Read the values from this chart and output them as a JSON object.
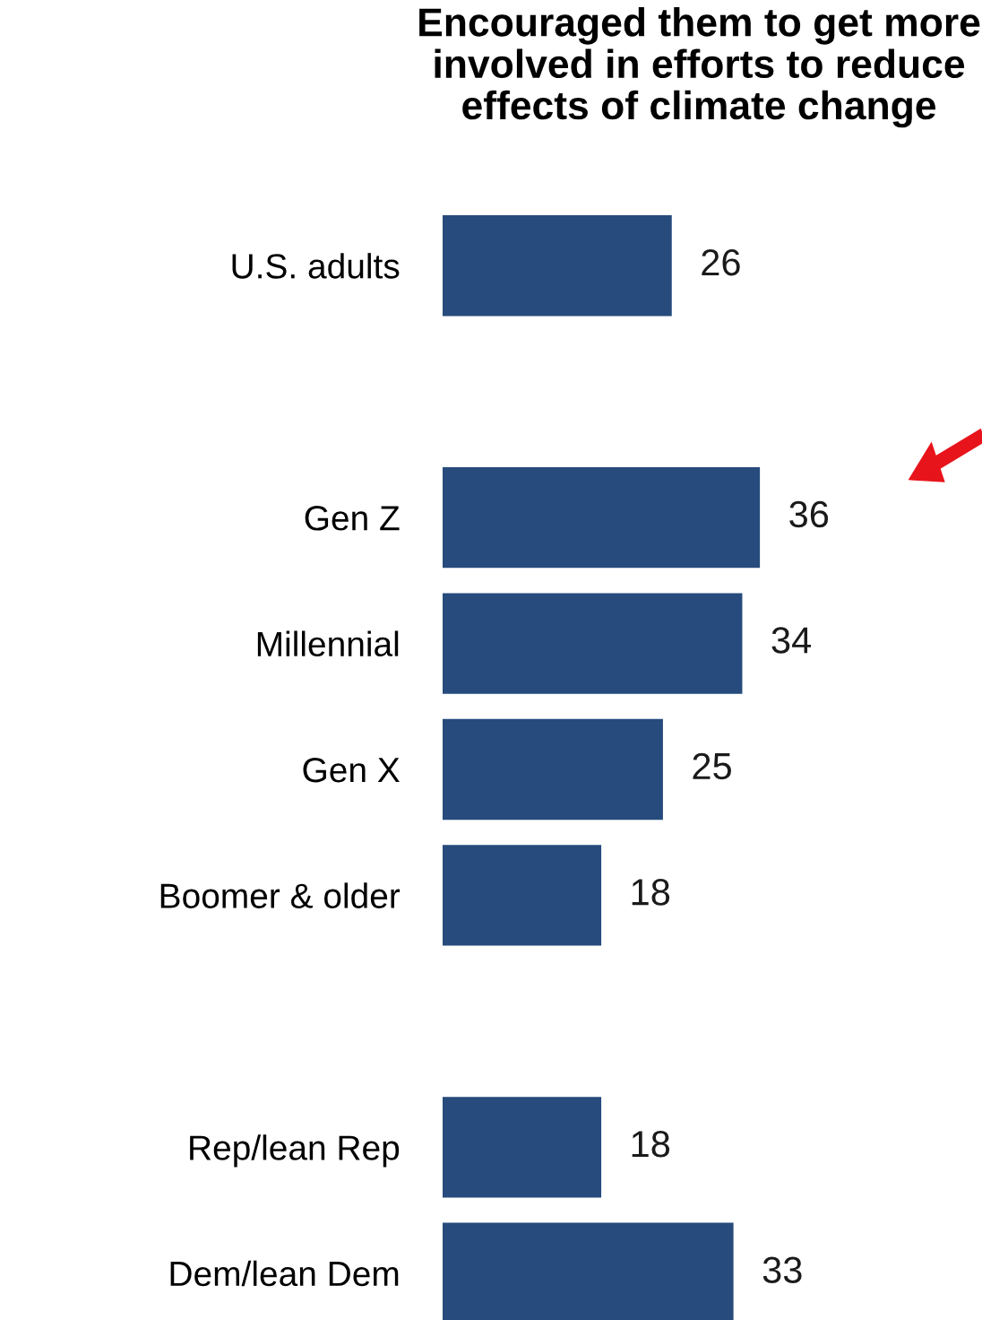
{
  "chart_data": {
    "type": "bar",
    "orientation": "horizontal",
    "title": "Encouraged them to get more\ninvolved in efforts to reduce\neffects of climate change",
    "categories": [
      "U.S. adults",
      null,
      "Gen Z",
      "Millennial",
      "Gen X",
      "Boomer & older",
      null,
      "Rep/lean Rep",
      "Dem/lean Dem"
    ],
    "values": [
      26,
      null,
      36,
      34,
      25,
      18,
      null,
      18,
      33
    ],
    "color": "#264b7c",
    "data_labels": true,
    "tick_labels": "y",
    "grid": false,
    "legend": false
  }
}
